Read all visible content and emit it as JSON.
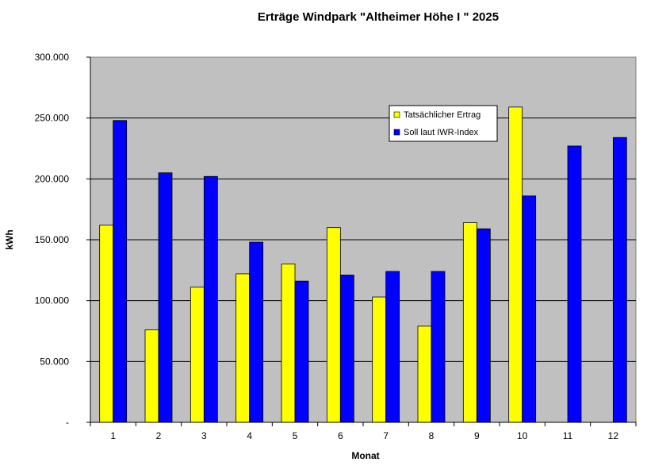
{
  "chart_data": {
    "type": "bar",
    "title": "Erträge Windpark \"Altheimer Höhe I \" 2025",
    "xlabel": "Monat",
    "ylabel": "kWh",
    "ylim": [
      0,
      300000
    ],
    "yticks": [
      0,
      50000,
      100000,
      150000,
      200000,
      250000,
      300000
    ],
    "ytick_labels": [
      "-",
      "50.000",
      "100.000",
      "150.000",
      "200.000",
      "250.000",
      "300.000"
    ],
    "categories": [
      "1",
      "2",
      "3",
      "4",
      "5",
      "6",
      "7",
      "8",
      "9",
      "10",
      "11",
      "12"
    ],
    "grid": true,
    "legend_position": "top-right",
    "series": [
      {
        "name": "Tatsächlicher Ertrag",
        "color": "#ffff00",
        "values": [
          162000,
          76000,
          111000,
          122000,
          130000,
          160000,
          103000,
          79000,
          164000,
          259000,
          null,
          null
        ]
      },
      {
        "name": "Soll laut IWR-Index",
        "color": "#0000ff",
        "values": [
          248000,
          205000,
          202000,
          148000,
          116000,
          121000,
          124000,
          124000,
          159000,
          186000,
          227000,
          234000
        ]
      }
    ],
    "plot_background": "#c0c0c0"
  }
}
